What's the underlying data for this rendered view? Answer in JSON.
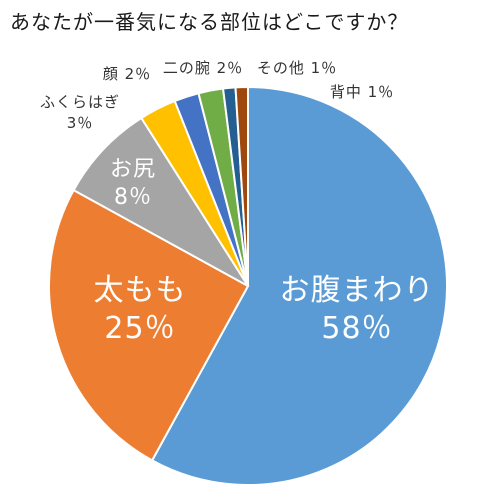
{
  "chart_data": {
    "type": "pie",
    "title": "あなたが一番気になる部位はどこですか？",
    "slices": [
      {
        "label": "お腹まわり",
        "value": 58,
        "value_label": "58％",
        "color": "#5b9bd5"
      },
      {
        "label": "太もも",
        "value": 25,
        "value_label": "25％",
        "color": "#ed7d31"
      },
      {
        "label": "お尻",
        "value": 8,
        "value_label": "8％",
        "color": "#a5a5a5"
      },
      {
        "label": "ふくらはぎ",
        "value": 3,
        "value_label": "3％",
        "color": "#ffc000"
      },
      {
        "label": "顔",
        "value": 2,
        "value_label": "2％",
        "color": "#4472c4"
      },
      {
        "label": "二の腕",
        "value": 2,
        "value_label": "2％",
        "color": "#70ad47"
      },
      {
        "label": "その他",
        "value": 1,
        "value_label": "1％",
        "color": "#255e91"
      },
      {
        "label": "背中",
        "value": 1,
        "value_label": "1％",
        "color": "#9e480e"
      }
    ],
    "start_angle_deg": 0,
    "direction": "clockwise",
    "legend": "none"
  }
}
